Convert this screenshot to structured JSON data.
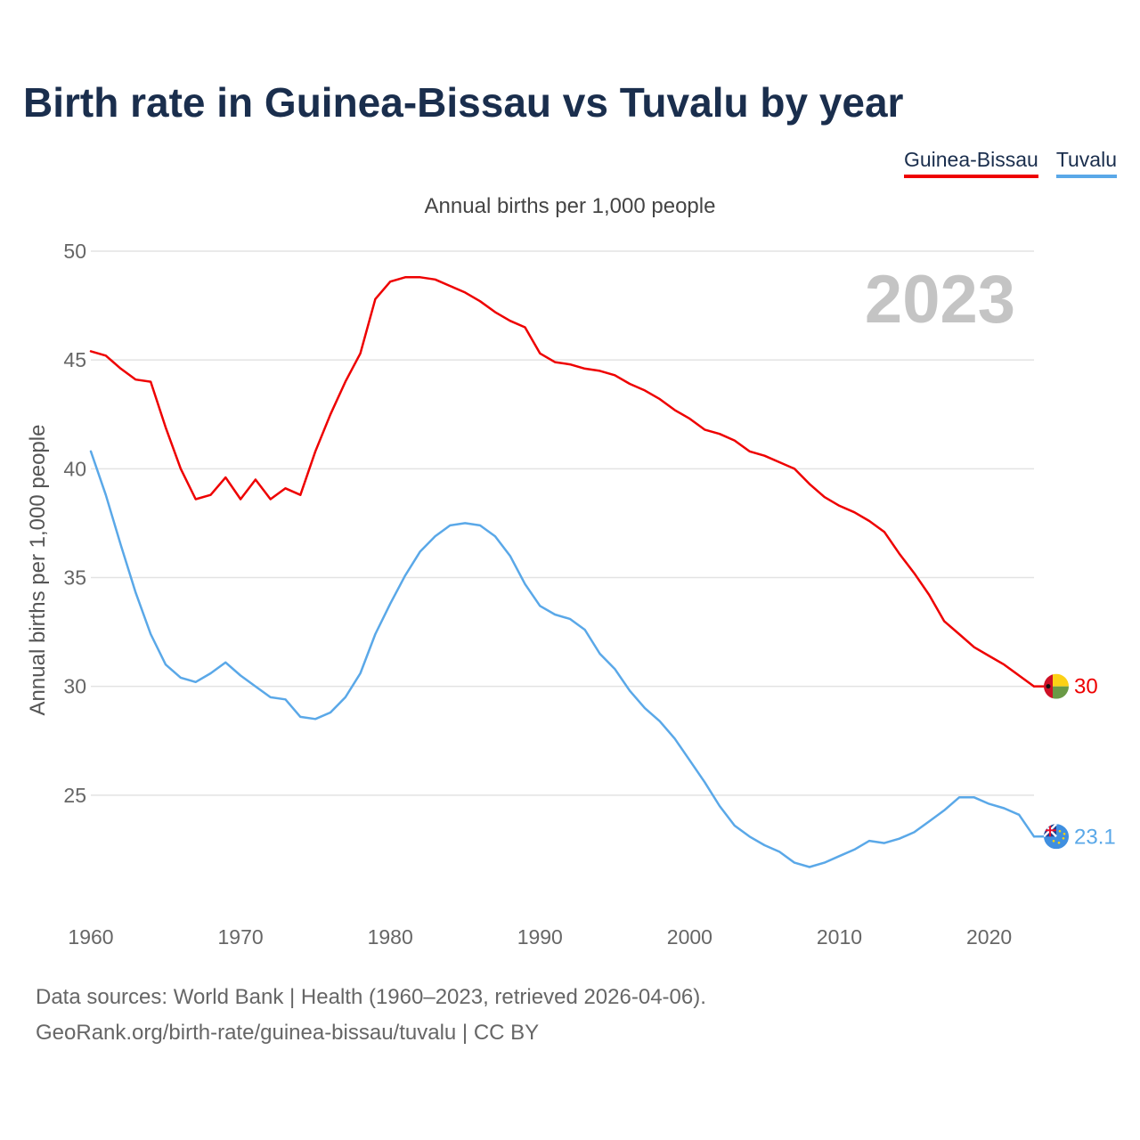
{
  "title": "Birth rate in Guinea-Bissau vs Tuvalu by year",
  "legend": [
    {
      "name": "Guinea-Bissau",
      "color": "#ee0000"
    },
    {
      "name": "Tuvalu",
      "color": "#5aa8e8"
    }
  ],
  "footer": {
    "source": "Data sources: World Bank | Health (1960–2023, retrieved 2026-04-06).",
    "credit": "GeoRank.org/birth-rate/guinea-bissau/tuvalu | CC BY"
  },
  "chart_data": {
    "type": "line",
    "title": "Birth rate in Guinea-Bissau vs Tuvalu by year",
    "subtitle": "Annual births per 1,000 people",
    "ylabel": "Annual births per 1,000 people",
    "xlabel": "",
    "year_label": "2023",
    "xlim": [
      1960,
      2023
    ],
    "ylim": [
      20,
      50
    ],
    "yticks": [
      25,
      30,
      35,
      40,
      45,
      50
    ],
    "xticks": [
      1960,
      1970,
      1980,
      1990,
      2000,
      2010,
      2020
    ],
    "grid": true,
    "legend_position": "top-right",
    "x": [
      1960,
      1961,
      1962,
      1963,
      1964,
      1965,
      1966,
      1967,
      1968,
      1969,
      1970,
      1971,
      1972,
      1973,
      1974,
      1975,
      1976,
      1977,
      1978,
      1979,
      1980,
      1981,
      1982,
      1983,
      1984,
      1985,
      1986,
      1987,
      1988,
      1989,
      1990,
      1991,
      1992,
      1993,
      1994,
      1995,
      1996,
      1997,
      1998,
      1999,
      2000,
      2001,
      2002,
      2003,
      2004,
      2005,
      2006,
      2007,
      2008,
      2009,
      2010,
      2011,
      2012,
      2013,
      2014,
      2015,
      2016,
      2017,
      2018,
      2019,
      2020,
      2021,
      2022,
      2023
    ],
    "series": [
      {
        "name": "Guinea-Bissau",
        "color": "#ee0000",
        "end_label": "30",
        "values": [
          45.4,
          45.2,
          44.6,
          44.1,
          44.0,
          41.9,
          40.0,
          38.6,
          38.8,
          39.6,
          38.6,
          39.5,
          38.6,
          39.1,
          38.8,
          40.8,
          42.5,
          44.0,
          45.3,
          47.8,
          48.6,
          48.8,
          48.8,
          48.7,
          48.4,
          48.1,
          47.7,
          47.2,
          46.8,
          46.5,
          45.3,
          44.9,
          44.8,
          44.6,
          44.5,
          44.3,
          43.9,
          43.6,
          43.2,
          42.7,
          42.3,
          41.8,
          41.6,
          41.3,
          40.8,
          40.6,
          40.3,
          40.0,
          39.3,
          38.7,
          38.3,
          38.0,
          37.6,
          37.1,
          36.1,
          35.2,
          34.2,
          33.0,
          32.4,
          31.8,
          31.4,
          31.0,
          30.5,
          30.0
        ]
      },
      {
        "name": "Tuvalu",
        "color": "#5aa8e8",
        "end_label": "23.1",
        "values": [
          40.8,
          38.8,
          36.5,
          34.3,
          32.4,
          31.0,
          30.4,
          30.2,
          30.6,
          31.1,
          30.5,
          30.0,
          29.5,
          29.4,
          28.6,
          28.5,
          28.8,
          29.5,
          30.6,
          32.4,
          33.8,
          35.1,
          36.2,
          36.9,
          37.4,
          37.5,
          37.4,
          36.9,
          36.0,
          34.7,
          33.7,
          33.3,
          33.1,
          32.6,
          31.5,
          30.8,
          29.8,
          29.0,
          28.4,
          27.6,
          26.6,
          25.6,
          24.5,
          23.6,
          23.1,
          22.7,
          22.4,
          21.9,
          21.7,
          21.9,
          22.2,
          22.5,
          22.9,
          22.8,
          23.0,
          23.3,
          23.8,
          24.3,
          24.9,
          24.9,
          24.6,
          24.4,
          24.1,
          23.1
        ]
      }
    ]
  }
}
